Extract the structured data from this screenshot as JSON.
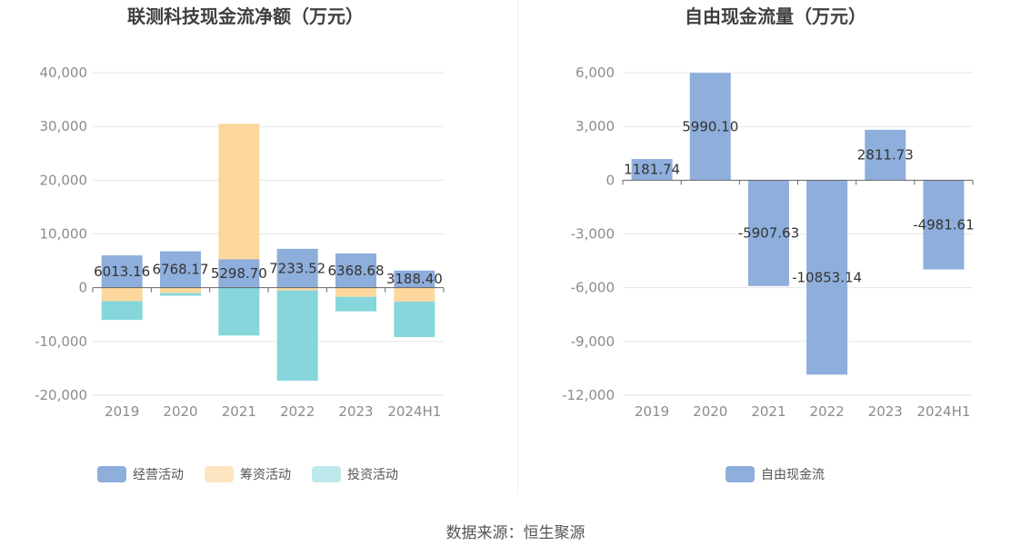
{
  "source_text": "数据来源：恒生聚源",
  "chart_data": [
    {
      "type": "bar",
      "stacked": true,
      "title": "联测科技现金流净额（万元）",
      "categories": [
        "2019",
        "2020",
        "2021",
        "2022",
        "2023",
        "2024H1"
      ],
      "ylim": [
        -20000,
        40000
      ],
      "yticks": [
        40000,
        30000,
        20000,
        10000,
        0,
        -10000,
        -20000
      ],
      "ytick_labels": [
        "40,000",
        "30,000",
        "20,000",
        "10,000",
        "0",
        "-10,000",
        "-20,000"
      ],
      "series": [
        {
          "name": "经营活动",
          "color": "#8eaedb",
          "values": [
            6013.16,
            6768.17,
            5298.7,
            7233.52,
            6368.68,
            3188.4
          ]
        },
        {
          "name": "筹资活动",
          "color": "#fdd89e",
          "values": [
            -2500,
            -1000,
            25200,
            -500,
            -1700,
            -2600
          ]
        },
        {
          "name": "投资活动",
          "color": "#86d6db",
          "values": [
            -3500,
            -500,
            -8900,
            -16800,
            -2700,
            -6600
          ]
        }
      ],
      "data_labels": [
        "6013.16",
        "6768.17",
        "5298.70",
        "7233.52",
        "6368.68",
        "3188.40"
      ],
      "legend": [
        {
          "name": "经营活动",
          "color": "#8eaedb"
        },
        {
          "name": "筹资活动",
          "color": "#fde5c3"
        },
        {
          "name": "投资活动",
          "color": "#bde9ec"
        }
      ]
    },
    {
      "type": "bar",
      "title": "自由现金流量（万元）",
      "categories": [
        "2019",
        "2020",
        "2021",
        "2022",
        "2023",
        "2024H1"
      ],
      "ylim": [
        -12000,
        6000
      ],
      "yticks": [
        6000,
        3000,
        0,
        -3000,
        -6000,
        -9000,
        -12000
      ],
      "ytick_labels": [
        "6,000",
        "3,000",
        "0",
        "-3,000",
        "-6,000",
        "-9,000",
        "-12,000"
      ],
      "series": [
        {
          "name": "自由现金流",
          "color": "#8eaedb",
          "values": [
            1181.74,
            5990.1,
            -5907.63,
            -10853.14,
            2811.73,
            -4981.61
          ]
        }
      ],
      "data_labels": [
        "1181.74",
        "5990.10",
        "-5907.63",
        "-10853.14",
        "2811.73",
        "-4981.61"
      ],
      "legend": [
        {
          "name": "自由现金流",
          "color": "#8eaedb"
        }
      ]
    }
  ]
}
